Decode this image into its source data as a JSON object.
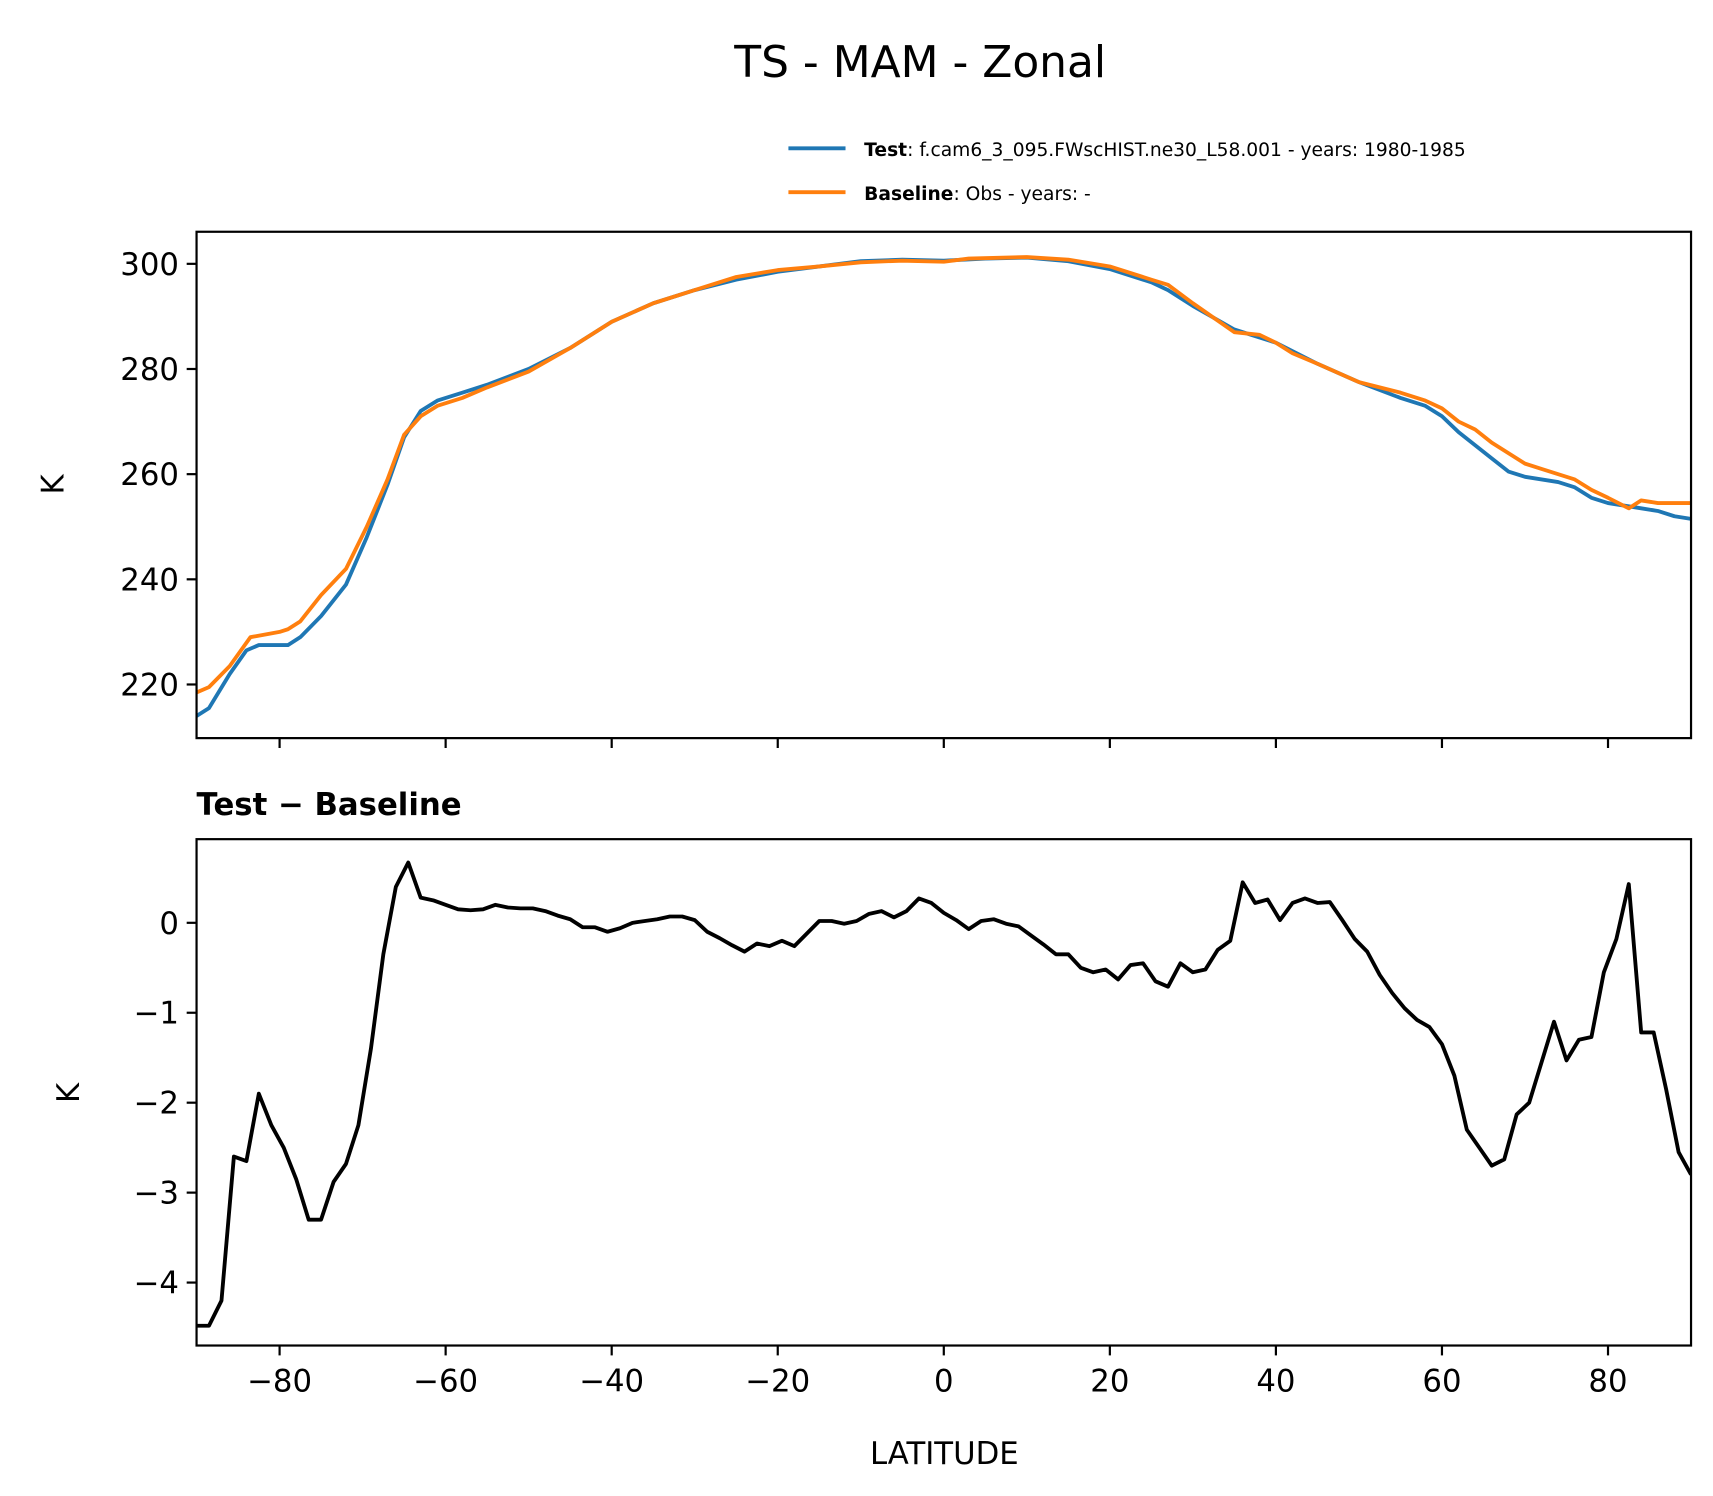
{
  "title": "TS - MAM - Zonal",
  "colors": {
    "test": "#1f77b4",
    "baseline": "#ff7f0e",
    "diff": "#000000"
  },
  "legend": [
    {
      "bold": "Test",
      "text": ": f.cam6_3_095.FWscHIST.ne30_L58.001 - years: 1980-1985"
    },
    {
      "bold": "Baseline",
      "text": ": Obs - years: -"
    }
  ],
  "chart_data": [
    {
      "type": "line",
      "title": "",
      "xlabel": "",
      "ylabel": "K",
      "xlim": [
        -90,
        90
      ],
      "ylim": [
        209.8,
        306.1
      ],
      "xticks": [
        -80,
        -60,
        -40,
        -20,
        0,
        20,
        40,
        60,
        80
      ],
      "yticks": [
        220,
        240,
        260,
        280,
        300
      ],
      "ytick_labels": [
        "220",
        "240",
        "260",
        "280",
        "300"
      ],
      "legend_position": "top-right",
      "series": [
        {
          "name": "Test",
          "color": "#1f77b4",
          "x": [
            -90,
            -88.5,
            -86,
            -84,
            -82.5,
            -79,
            -77.5,
            -75,
            -72,
            -69.5,
            -67,
            -65,
            -63,
            -61,
            -58,
            -55,
            -50,
            -45,
            -40,
            -35,
            -30,
            -25,
            -20,
            -15,
            -10,
            -5,
            0,
            5,
            10,
            15,
            20,
            25,
            27,
            30,
            35,
            40,
            45,
            50,
            55,
            58,
            60,
            62,
            66,
            68,
            70,
            74,
            76,
            78,
            80,
            84,
            86,
            88,
            90
          ],
          "y": [
            214,
            215.5,
            222,
            226.5,
            227.5,
            227.5,
            229,
            233,
            239,
            248,
            258,
            267,
            272,
            274,
            275.5,
            277,
            280,
            284,
            289,
            292.5,
            295,
            297,
            298.5,
            299.5,
            300.5,
            300.8,
            300.6,
            301,
            301.2,
            300.5,
            299,
            296.5,
            295,
            292,
            287.5,
            285,
            281,
            277.5,
            274.5,
            273,
            271,
            268,
            263,
            260.5,
            259.5,
            258.5,
            257.5,
            255.5,
            254.5,
            253.5,
            253,
            252,
            251.5
          ]
        },
        {
          "name": "Baseline",
          "color": "#ff7f0e",
          "x": [
            -90,
            -88.5,
            -86,
            -83.5,
            -80,
            -79,
            -77.5,
            -75,
            -72,
            -69.5,
            -67,
            -65,
            -63,
            -61,
            -58,
            -55,
            -50,
            -45,
            -40,
            -35,
            -30,
            -25,
            -20,
            -15,
            -10,
            -5,
            0,
            3,
            10,
            15,
            20,
            25,
            27,
            30,
            35,
            38,
            40,
            42,
            45,
            50,
            55,
            58,
            60,
            62,
            64,
            66,
            70,
            72,
            74,
            76,
            78,
            80,
            82.5,
            84,
            86,
            90
          ],
          "y": [
            218.5,
            219.5,
            223.5,
            229,
            230,
            230.5,
            232,
            237,
            242,
            250,
            259,
            267.5,
            271,
            273,
            274.5,
            276.5,
            279.5,
            284,
            289,
            292.5,
            295,
            297.5,
            298.8,
            299.5,
            300.3,
            300.6,
            300.4,
            301,
            301.3,
            300.8,
            299.5,
            297,
            296,
            292.5,
            287,
            286.5,
            285,
            283,
            281,
            277.5,
            275.5,
            274,
            272.5,
            270,
            268.5,
            266,
            262,
            261,
            260,
            259,
            257,
            255.5,
            253.5,
            255,
            254.5,
            254.5
          ]
        }
      ]
    },
    {
      "type": "line",
      "title": "Test − Baseline",
      "xlabel": "LATITUDE",
      "ylabel": "K",
      "xlim": [
        -90,
        90
      ],
      "ylim": [
        -4.7,
        0.93
      ],
      "xticks": [
        -80,
        -60,
        -40,
        -20,
        0,
        20,
        40,
        60,
        80
      ],
      "xtick_labels": [
        "−80",
        "−60",
        "−40",
        "−20",
        "0",
        "20",
        "40",
        "60",
        "80"
      ],
      "yticks": [
        -4,
        -3,
        -2,
        -1,
        0
      ],
      "ytick_labels": [
        "−4",
        "−3",
        "−2",
        "−1",
        "0"
      ],
      "series": [
        {
          "name": "Test − Baseline",
          "color": "#000000",
          "x_start": -90,
          "x_end": 90,
          "y": [
            -4.48,
            -4.48,
            -4.2,
            -2.6,
            -2.65,
            -1.9,
            -2.25,
            -2.5,
            -2.85,
            -3.3,
            -3.3,
            -2.88,
            -2.68,
            -2.25,
            -1.4,
            -0.35,
            0.4,
            0.67,
            0.28,
            0.25,
            0.2,
            0.15,
            0.14,
            0.15,
            0.2,
            0.17,
            0.16,
            0.16,
            0.13,
            0.08,
            0.04,
            -0.05,
            -0.05,
            -0.1,
            -0.06,
            0,
            0.02,
            0.04,
            0.07,
            0.07,
            0.03,
            -0.1,
            -0.17,
            -0.25,
            -0.32,
            -0.23,
            -0.26,
            -0.2,
            -0.26,
            -0.12,
            0.02,
            0.02,
            -0.01,
            0.02,
            0.1,
            0.13,
            0.06,
            0.13,
            0.27,
            0.22,
            0.11,
            0.03,
            -0.07,
            0.02,
            0.04,
            -0.01,
            -0.04,
            -0.14,
            -0.24,
            -0.35,
            -0.35,
            -0.5,
            -0.55,
            -0.52,
            -0.63,
            -0.47,
            -0.45,
            -0.65,
            -0.71,
            -0.45,
            -0.55,
            -0.52,
            -0.3,
            -0.2,
            0.45,
            0.22,
            0.26,
            0.03,
            0.22,
            0.27,
            0.22,
            0.23,
            0.03,
            -0.18,
            -0.32,
            -0.58,
            -0.78,
            -0.95,
            -1.08,
            -1.16,
            -1.35,
            -1.7,
            -2.3,
            -2.5,
            -2.7,
            -2.63,
            -2.13,
            -2.0,
            -1.55,
            -1.1,
            -1.53,
            -1.3,
            -1.27,
            -0.55,
            -0.18,
            0.43,
            -1.22,
            -1.22,
            -1.85,
            -2.55,
            -2.8
          ]
        }
      ]
    }
  ]
}
